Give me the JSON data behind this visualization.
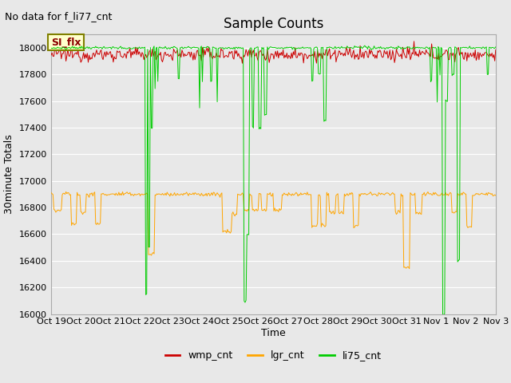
{
  "title": "Sample Counts",
  "no_data_text": "No data for f_li77_cnt",
  "ylabel": "30minute Totals",
  "xlabel": "Time",
  "ylim": [
    16000,
    18100
  ],
  "yticks": [
    16000,
    16200,
    16400,
    16600,
    16800,
    17000,
    17200,
    17400,
    17600,
    17800,
    18000
  ],
  "xtick_labels": [
    "Oct 19",
    "Oct 20",
    "Oct 21",
    "Oct 22",
    "Oct 23",
    "Oct 24",
    "Oct 25",
    "Oct 26",
    "Oct 27",
    "Oct 28",
    "Oct 29",
    "Oct 30",
    "Oct 31",
    "Nov 1",
    "Nov 2",
    "Nov 3"
  ],
  "wmp_color": "#cc0000",
  "lgr_color": "#ffa500",
  "li75_color": "#00cc00",
  "annotation_text": "SI_flx",
  "wmp_base": 17950,
  "wmp_noise": 25,
  "lgr_base": 16900,
  "lgr_noise": 8,
  "li75_base": 18000,
  "li75_noise": 5,
  "n_points": 480,
  "background_color": "#e8e8e8",
  "grid_color": "#ffffff",
  "fig_bg": "#e8e8e8"
}
